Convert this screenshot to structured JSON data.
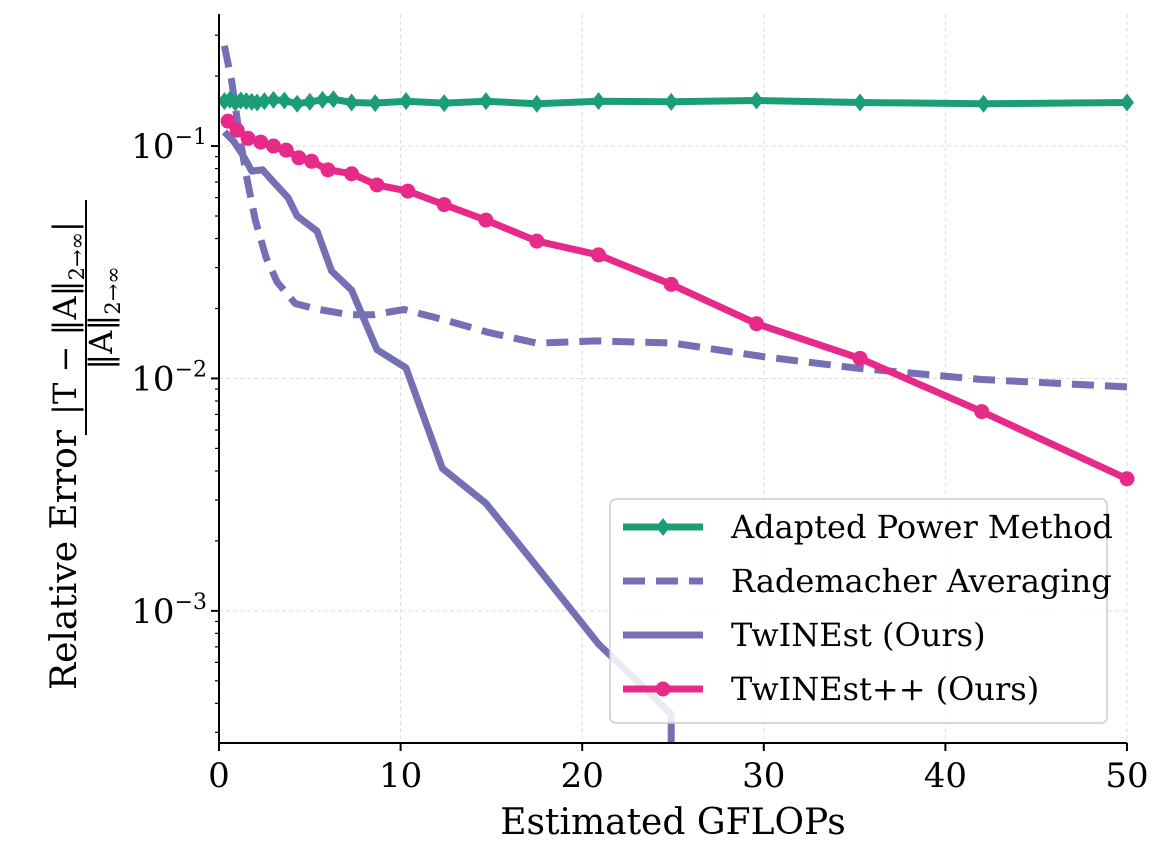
{
  "chart_data": {
    "type": "line",
    "xlabel": "Estimated GFLOPs",
    "ylabel": {
      "prefix": "Relative Error",
      "numerator": "|T − ‖A‖",
      "numerator_sub": "2→∞",
      "numerator_end": "|",
      "denominator": "‖A‖",
      "denominator_sub": "2→∞"
    },
    "xlim": [
      0,
      50
    ],
    "ylim": [
      0.00027,
      0.37
    ],
    "yscale": "log",
    "grid": true,
    "x_ticks": [
      {
        "value": 0,
        "label": "0"
      },
      {
        "value": 10,
        "label": "10"
      },
      {
        "value": 20,
        "label": "20"
      },
      {
        "value": 30,
        "label": "30"
      },
      {
        "value": 40,
        "label": "40"
      },
      {
        "value": 50,
        "label": "50"
      }
    ],
    "y_ticks": [
      {
        "value": 0.1,
        "base": "10",
        "exp": "−1"
      },
      {
        "value": 0.01,
        "base": "10",
        "exp": "−2"
      },
      {
        "value": 0.001,
        "base": "10",
        "exp": "−3"
      }
    ],
    "legend_position": "lower-right",
    "series": [
      {
        "name": "Adapted Power Method",
        "color": "#1b9e77",
        "style": "solid",
        "marker": "diamond",
        "x": [
          0.3,
          0.6,
          0.9,
          1.2,
          1.5,
          1.8,
          2.1,
          2.5,
          3.0,
          3.6,
          4.3,
          5.0,
          5.7,
          6.3,
          7.3,
          8.6,
          10.3,
          12.4,
          14.7,
          17.5,
          20.9,
          24.9,
          29.6,
          35.3,
          42.1,
          50.0
        ],
        "y": [
          0.156,
          0.158,
          0.154,
          0.157,
          0.156,
          0.155,
          0.154,
          0.156,
          0.158,
          0.157,
          0.152,
          0.155,
          0.158,
          0.159,
          0.154,
          0.153,
          0.156,
          0.153,
          0.156,
          0.152,
          0.156,
          0.155,
          0.157,
          0.154,
          0.152,
          0.154
        ]
      },
      {
        "name": "Rademacher Averaging",
        "color": "#7570b3",
        "style": "dashed",
        "marker": "none",
        "x": [
          0.3,
          0.7,
          1.1,
          1.5,
          2.0,
          2.6,
          3.2,
          4.2,
          5.5,
          7.2,
          8.5,
          10.2,
          12.5,
          14.8,
          17.5,
          20.8,
          25.0,
          30.0,
          35.0,
          42.0,
          50.0
        ],
        "y": [
          0.27,
          0.19,
          0.115,
          0.075,
          0.048,
          0.033,
          0.026,
          0.021,
          0.0198,
          0.0188,
          0.0188,
          0.0198,
          0.0178,
          0.0158,
          0.0142,
          0.0145,
          0.0142,
          0.0124,
          0.0111,
          0.0099,
          0.0092
        ]
      },
      {
        "name": "TwINEst (Ours)",
        "color": "#7570b3",
        "style": "solid",
        "marker": "none",
        "x": [
          0.3,
          0.8,
          1.3,
          1.8,
          2.4,
          3.0,
          3.8,
          4.3,
          5.4,
          6.2,
          7.3,
          8.7,
          10.3,
          12.3,
          14.7,
          17.5,
          20.9,
          24.9,
          24.9
        ],
        "y": [
          0.115,
          0.105,
          0.092,
          0.078,
          0.079,
          0.07,
          0.06,
          0.05,
          0.043,
          0.029,
          0.024,
          0.0133,
          0.0111,
          0.0041,
          0.0029,
          0.00155,
          0.00072,
          0.00036,
          0.00025
        ]
      },
      {
        "name": "TwINEst++ (Ours)",
        "color": "#e7298a",
        "style": "solid",
        "marker": "circle",
        "x": [
          0.5,
          1.0,
          1.6,
          2.3,
          3.0,
          3.7,
          4.4,
          5.1,
          6.0,
          7.3,
          8.7,
          10.4,
          12.4,
          14.7,
          17.5,
          20.9,
          24.9,
          29.6,
          35.3,
          42.0,
          50.0
        ],
        "y": [
          0.128,
          0.117,
          0.108,
          0.104,
          0.1,
          0.096,
          0.089,
          0.086,
          0.079,
          0.076,
          0.068,
          0.064,
          0.056,
          0.048,
          0.039,
          0.034,
          0.0254,
          0.0172,
          0.0122,
          0.0072,
          0.0037
        ]
      }
    ]
  }
}
